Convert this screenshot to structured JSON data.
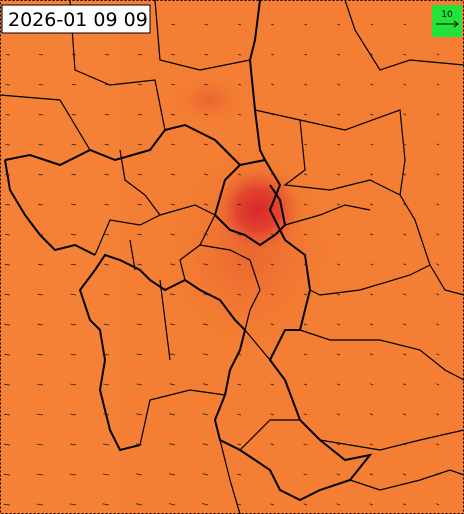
{
  "timestamp": "2026-01 09 09",
  "wind_legend": {
    "label": "10"
  }
}
